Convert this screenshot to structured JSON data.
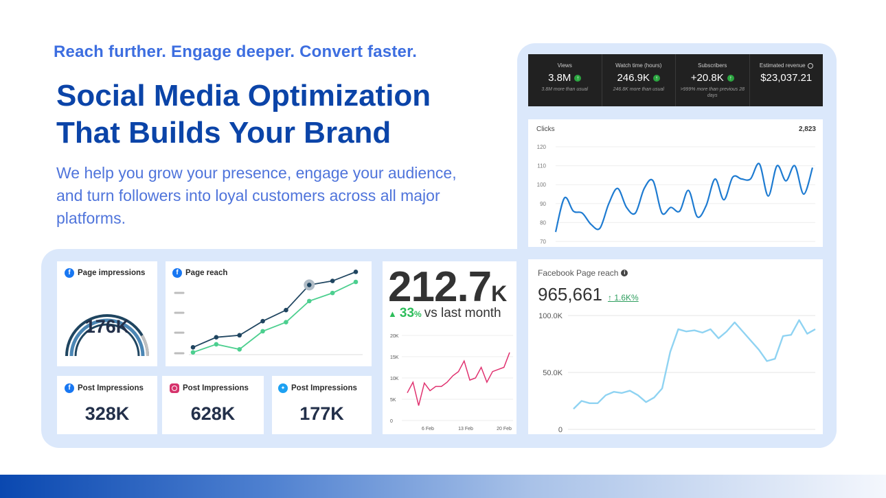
{
  "hero": {
    "tagline": "Reach further. Engage deeper. Convert faster.",
    "headline_line1": "Social Media Optimization",
    "headline_line2": "That Builds Your Brand",
    "lede": "We help you grow your presence, engage your audience, and turn followers into loyal customers across all major platforms."
  },
  "youtube": {
    "metrics": [
      {
        "label": "Views",
        "value": "3.8M",
        "sub": "3.8M more than usual",
        "trend": "up"
      },
      {
        "label": "Watch time (hours)",
        "value": "246.9K",
        "sub": "246.8K more than usual",
        "trend": "up"
      },
      {
        "label": "Subscribers",
        "value": "+20.8K",
        "sub": ">999% more than previous 28 days",
        "trend": "up"
      },
      {
        "label": "Estimated revenue",
        "value": "$23,037.21",
        "sub": "",
        "trend": "none",
        "icon": "clock-icon"
      }
    ]
  },
  "clicks_card": {
    "title": "Clicks",
    "total": "2,823"
  },
  "page_impressions": {
    "title": "Page impressions",
    "value": "176K",
    "platform_icon": "facebook-icon"
  },
  "page_reach": {
    "title": "Page reach",
    "platform_icon": "facebook-icon"
  },
  "post_impressions": [
    {
      "title": "Post Impressions",
      "value": "328K",
      "platform_icon": "facebook-icon"
    },
    {
      "title": "Post Impressions",
      "value": "628K",
      "platform_icon": "instagram-icon"
    },
    {
      "title": "Post Impressions",
      "value": "177K",
      "platform_icon": "twitter-icon"
    }
  ],
  "monthly_card": {
    "value": "212.7",
    "unit": "K",
    "delta_pct": "33",
    "delta_pct_unit": "%",
    "delta_text": "vs last month"
  },
  "fb_page_reach": {
    "title": "Facebook Page reach",
    "value": "965,661",
    "delta": "↑ 1.6K%"
  },
  "colors": {
    "brand_dark": "#0b44a8",
    "brand_light": "#3d6ee0",
    "panel_bg": "#dbe8fb",
    "clicks_line": "#1e7bd1",
    "reach_dark": "#1f4560",
    "reach_green": "#4ccf8f",
    "pink_line": "#e0316f",
    "fb_reach_line": "#8fd3f2",
    "gauge_dark": "#1f4560",
    "gauge_mid": "#4b86b4",
    "gauge_light": "#c0c0c0"
  },
  "chart_data": [
    {
      "type": "line",
      "title": "Clicks",
      "ylim": [
        70,
        120
      ],
      "yticks": [
        "120",
        "110",
        "100",
        "90",
        "80",
        "70"
      ],
      "series": [
        {
          "values": [
            75,
            93,
            86,
            85,
            79,
            77,
            90,
            98,
            88,
            85,
            98,
            102,
            85,
            88,
            86,
            97,
            83,
            89,
            103,
            92,
            104,
            103,
            103,
            111,
            94,
            110,
            102,
            110,
            95,
            109
          ]
        }
      ]
    },
    {
      "type": "line",
      "title": "Page reach",
      "series": [
        {
          "values": [
            1,
            2,
            2.2,
            3.6,
            4.7,
            7.2,
            7.6,
            8.5
          ]
        },
        {
          "values": [
            0.5,
            1.3,
            0.8,
            2.6,
            3.5,
            5.6,
            6.4,
            7.5
          ]
        }
      ],
      "ylim": [
        0,
        9
      ]
    },
    {
      "type": "line",
      "ylim": [
        0,
        20000
      ],
      "yticks": [
        "20K",
        "15K",
        "10K",
        "5K",
        "0"
      ],
      "xticks": [
        "6 Feb",
        "13 Feb",
        "20 Feb"
      ],
      "series": [
        {
          "values": [
            6500,
            9000,
            3500,
            8800,
            7000,
            8000,
            8000,
            9000,
            10500,
            11500,
            14000,
            9500,
            10000,
            12500,
            9000,
            11500,
            12000,
            12500,
            16000
          ]
        }
      ]
    },
    {
      "type": "line",
      "title": "Facebook Page reach",
      "ylim": [
        0,
        100000
      ],
      "yticks": [
        "100.0K",
        "50.0K",
        "0"
      ],
      "series": [
        {
          "values": [
            18000,
            25000,
            23000,
            23000,
            30000,
            33000,
            32000,
            34000,
            30000,
            24000,
            28000,
            36000,
            68000,
            88000,
            86000,
            87000,
            85000,
            88000,
            80000,
            86000,
            94000,
            86000,
            78000,
            70000,
            60000,
            62000,
            82000,
            83000,
            96000,
            84000,
            88000
          ]
        }
      ]
    }
  ]
}
